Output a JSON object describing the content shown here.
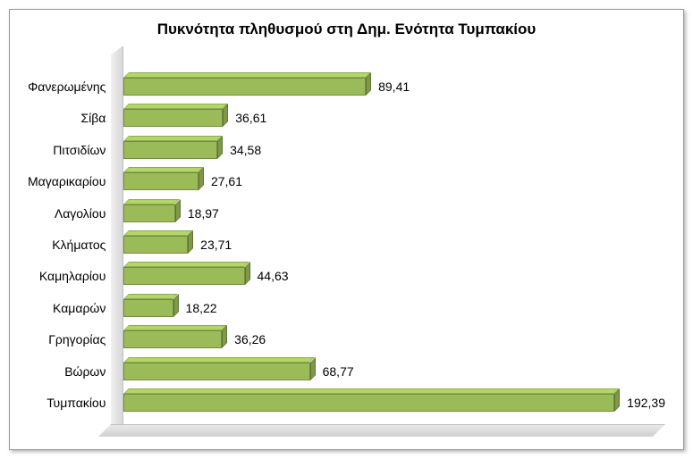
{
  "chart": {
    "type": "bar",
    "orientation": "horizontal",
    "title": "Πυκνότητα πληθυσμού στη Δημ. Ενότητα Τυμπακίου",
    "title_fontsize": 17,
    "title_fontweight": "bold",
    "title_color": "#000000",
    "label_fontsize": 14,
    "value_fontsize": 14,
    "value_color": "#000000",
    "label_color": "#000000",
    "background_color": "#ffffff",
    "frame_border_color": "#999999",
    "bar_face_color": "#9bbb59",
    "bar_shadow": true,
    "xlim": [
      0,
      200
    ],
    "categories": [
      "Φανερωμένης",
      "Σίβα",
      "Πιτσιδίων",
      "Μαγαρικαρίου",
      "Λαγολίου",
      "Κλήματος",
      "Καμηλαρίου",
      "Καμαρών",
      "Γρηγορίας",
      "Βώρων",
      "Τυμπακίου"
    ],
    "values": [
      89.41,
      36.61,
      34.58,
      27.61,
      18.97,
      23.71,
      44.63,
      18.22,
      36.26,
      68.77,
      192.39
    ],
    "value_labels": [
      "89,41",
      "36,61",
      "34,58",
      "27,61",
      "18,97",
      "23,71",
      "44,63",
      "18,22",
      "36,26",
      "68,77",
      "192,39"
    ]
  }
}
